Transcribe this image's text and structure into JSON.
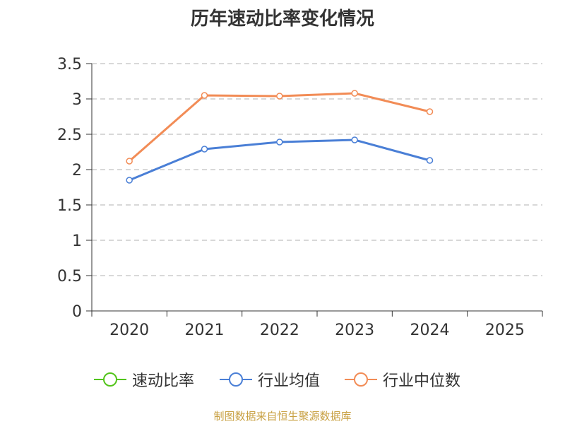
{
  "chart_data": {
    "type": "line",
    "title": "历年速动比率变化情况",
    "categories": [
      "2020",
      "2021",
      "2022",
      "2023",
      "2024",
      "2025"
    ],
    "ylim": [
      0,
      3.5
    ],
    "yticks": [
      "0",
      "0.5",
      "1",
      "1.5",
      "2",
      "2.5",
      "3",
      "3.5"
    ],
    "grid": true,
    "legend_position": "bottom-center",
    "series": [
      {
        "name": "速动比率",
        "color": "#52c41a",
        "values": [
          null,
          null,
          null,
          null,
          null,
          null
        ]
      },
      {
        "name": "行业均值",
        "color": "#4a7fd6",
        "values": [
          1.85,
          2.29,
          2.39,
          2.42,
          2.13,
          null
        ]
      },
      {
        "name": "行业中位数",
        "color": "#f28c56",
        "values": [
          2.12,
          3.05,
          3.04,
          3.08,
          2.82,
          null
        ]
      }
    ]
  },
  "source_note": "制图数据来自恒生聚源数据库"
}
